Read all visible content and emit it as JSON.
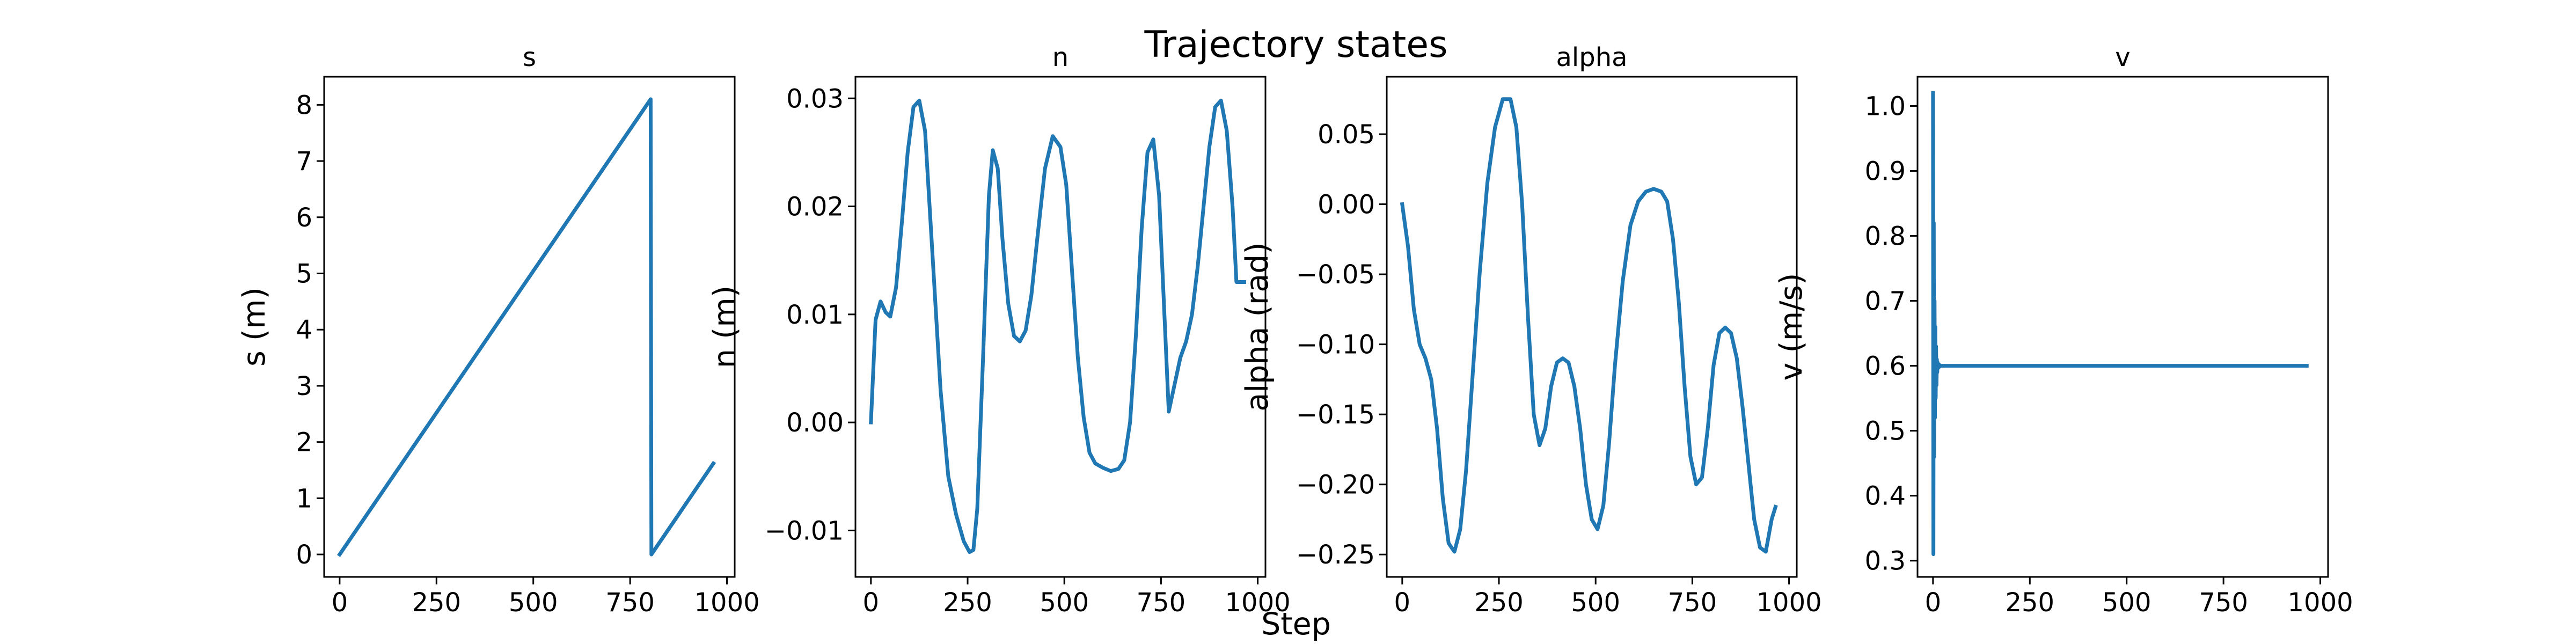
{
  "figure": {
    "title": "Trajectory states",
    "xlabel": "Step"
  },
  "chart_data": [
    {
      "type": "line",
      "title": "s",
      "xlabel": "",
      "ylabel": "s (m)",
      "xlim": [
        -40,
        1020
      ],
      "ylim": [
        -0.4,
        8.5
      ],
      "xticks": [
        0,
        250,
        500,
        750,
        1000
      ],
      "yticks": [
        0,
        1,
        2,
        3,
        4,
        5,
        6,
        7,
        8
      ],
      "ytick_labels": [
        "0",
        "1",
        "2",
        "3",
        "4",
        "5",
        "6",
        "7",
        "8"
      ],
      "grid": false,
      "color": "#1f77b4",
      "series": [
        {
          "x": [
            0,
            803,
            803,
            805,
            965
          ],
          "y": [
            0,
            8.1,
            8.1,
            0.0,
            1.62
          ]
        }
      ]
    },
    {
      "type": "line",
      "title": "n",
      "xlabel": "",
      "ylabel": "n (m)",
      "xlim": [
        -40,
        1020
      ],
      "ylim": [
        -0.0143,
        0.032
      ],
      "xticks": [
        0,
        250,
        500,
        750,
        1000
      ],
      "yticks": [
        -0.01,
        0.0,
        0.01,
        0.02,
        0.03
      ],
      "ytick_labels": [
        "−0.01",
        "0.00",
        "0.01",
        "0.02",
        "0.03"
      ],
      "grid": false,
      "color": "#1f77b4",
      "series": [
        {
          "x": [
            0,
            12,
            25,
            38,
            50,
            65,
            80,
            95,
            110,
            125,
            140,
            160,
            180,
            200,
            220,
            240,
            255,
            265,
            275,
            290,
            305,
            315,
            328,
            340,
            355,
            370,
            385,
            400,
            415,
            430,
            450,
            470,
            490,
            505,
            520,
            535,
            550,
            565,
            580,
            600,
            620,
            640,
            655,
            670,
            685,
            700,
            715,
            730,
            745,
            755,
            770,
            785,
            800,
            815,
            830,
            845,
            860,
            875,
            890,
            905,
            920,
            935,
            945,
            955,
            965
          ],
          "y": [
            0.0,
            0.0095,
            0.0112,
            0.0102,
            0.0098,
            0.0125,
            0.0185,
            0.025,
            0.0292,
            0.0298,
            0.027,
            0.015,
            0.003,
            -0.005,
            -0.0085,
            -0.011,
            -0.012,
            -0.0118,
            -0.008,
            0.006,
            0.021,
            0.0252,
            0.0235,
            0.017,
            0.011,
            0.008,
            0.0075,
            0.0085,
            0.0118,
            0.017,
            0.0235,
            0.0265,
            0.0255,
            0.022,
            0.014,
            0.006,
            0.0005,
            -0.0028,
            -0.0038,
            -0.0042,
            -0.0045,
            -0.0043,
            -0.0035,
            0.0,
            0.008,
            0.018,
            0.025,
            0.0262,
            0.021,
            0.013,
            0.001,
            0.0035,
            0.006,
            0.0075,
            0.01,
            0.0145,
            0.02,
            0.0255,
            0.0292,
            0.0298,
            0.027,
            0.02,
            0.013,
            0.013,
            0.013
          ]
        }
      ]
    },
    {
      "type": "line",
      "title": "alpha",
      "xlabel": "",
      "ylabel": "alpha (rad)",
      "xlim": [
        -40,
        1020
      ],
      "ylim": [
        -0.266,
        0.091
      ],
      "xticks": [
        0,
        250,
        500,
        750,
        1000
      ],
      "yticks": [
        -0.25,
        -0.2,
        -0.15,
        -0.1,
        -0.05,
        0.0,
        0.05
      ],
      "ytick_labels": [
        "−0.25",
        "−0.20",
        "−0.15",
        "−0.10",
        "−0.05",
        "0.00",
        "0.05"
      ],
      "grid": false,
      "color": "#1f77b4",
      "series": [
        {
          "x": [
            0,
            15,
            30,
            45,
            60,
            75,
            90,
            105,
            120,
            135,
            150,
            165,
            180,
            200,
            220,
            240,
            260,
            280,
            295,
            310,
            325,
            340,
            355,
            370,
            385,
            400,
            415,
            430,
            445,
            460,
            475,
            490,
            505,
            520,
            535,
            550,
            570,
            590,
            610,
            630,
            650,
            670,
            685,
            700,
            715,
            730,
            745,
            760,
            775,
            790,
            805,
            820,
            835,
            850,
            865,
            880,
            895,
            910,
            925,
            940,
            955,
            965
          ],
          "y": [
            0.0,
            -0.03,
            -0.075,
            -0.1,
            -0.11,
            -0.125,
            -0.16,
            -0.21,
            -0.242,
            -0.248,
            -0.232,
            -0.19,
            -0.13,
            -0.05,
            0.015,
            0.055,
            0.075,
            0.075,
            0.055,
            0.0,
            -0.08,
            -0.15,
            -0.172,
            -0.16,
            -0.13,
            -0.113,
            -0.11,
            -0.113,
            -0.13,
            -0.16,
            -0.2,
            -0.225,
            -0.232,
            -0.215,
            -0.17,
            -0.115,
            -0.055,
            -0.015,
            0.002,
            0.009,
            0.011,
            0.009,
            0.002,
            -0.025,
            -0.07,
            -0.13,
            -0.18,
            -0.2,
            -0.195,
            -0.16,
            -0.115,
            -0.092,
            -0.088,
            -0.092,
            -0.11,
            -0.145,
            -0.185,
            -0.225,
            -0.245,
            -0.248,
            -0.225,
            -0.216
          ]
        }
      ]
    },
    {
      "type": "line",
      "title": "v",
      "xlabel": "",
      "ylabel": "v (m/s)",
      "xlim": [
        -40,
        1020
      ],
      "ylim": [
        0.275,
        1.045
      ],
      "xticks": [
        0,
        250,
        500,
        750,
        1000
      ],
      "yticks": [
        0.3,
        0.4,
        0.5,
        0.6,
        0.7,
        0.8,
        0.9,
        1.0
      ],
      "ytick_labels": [
        "0.3",
        "0.4",
        "0.5",
        "0.6",
        "0.7",
        "0.8",
        "0.9",
        "1.0"
      ],
      "grid": false,
      "color": "#1f77b4",
      "series": [
        {
          "x": [
            0,
            1,
            2,
            3,
            4,
            5,
            6,
            7,
            8,
            9,
            10,
            11,
            12,
            14,
            16,
            18,
            20,
            25,
            30,
            40,
            60,
            100,
            200,
            400,
            600,
            800,
            965
          ],
          "y": [
            1.02,
            0.31,
            0.82,
            0.46,
            0.7,
            0.52,
            0.66,
            0.55,
            0.63,
            0.57,
            0.61,
            0.59,
            0.605,
            0.597,
            0.602,
            0.599,
            0.6,
            0.6,
            0.6,
            0.6,
            0.6,
            0.6,
            0.6,
            0.6,
            0.6,
            0.6,
            0.6
          ]
        }
      ]
    }
  ]
}
